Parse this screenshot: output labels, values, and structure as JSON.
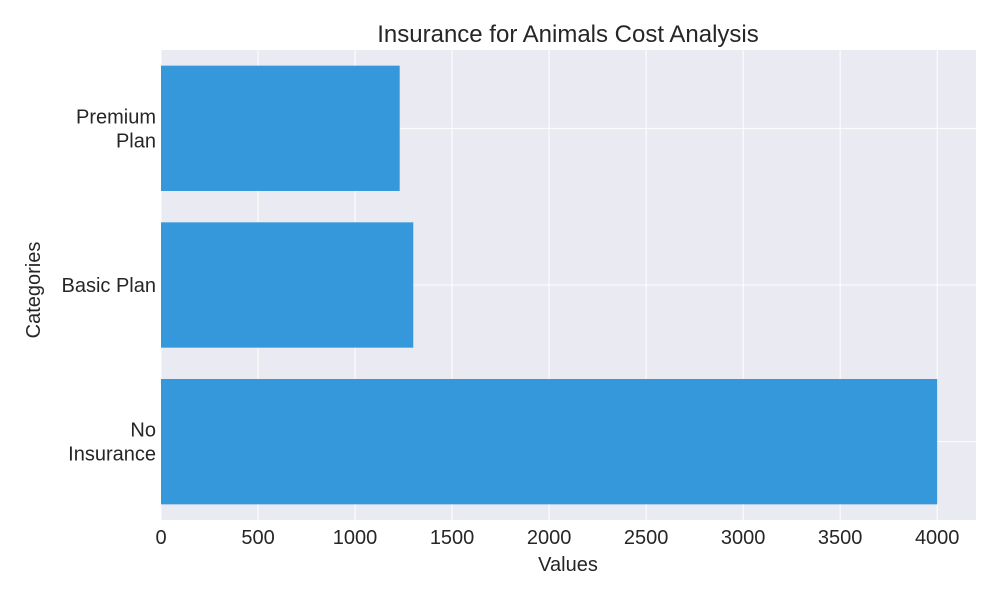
{
  "colors": {
    "plot_background": "#eaeaf2",
    "grid": "#ffffff",
    "bar": "#3498db",
    "text": "#262626"
  },
  "chart_data": {
    "type": "bar",
    "orientation": "horizontal",
    "title": "Insurance for Animals Cost Analysis",
    "xlabel": "Values",
    "ylabel": "Categories",
    "categories": [
      [
        "No",
        "Insurance"
      ],
      [
        "Basic Plan"
      ],
      [
        "Premium",
        "Plan"
      ]
    ],
    "values": [
      4000,
      1300,
      1230
    ],
    "xlim": [
      0,
      4200
    ],
    "xticks": [
      0,
      500,
      1000,
      1500,
      2000,
      2500,
      3000,
      3500,
      4000
    ],
    "grid": true,
    "legend": "none"
  }
}
